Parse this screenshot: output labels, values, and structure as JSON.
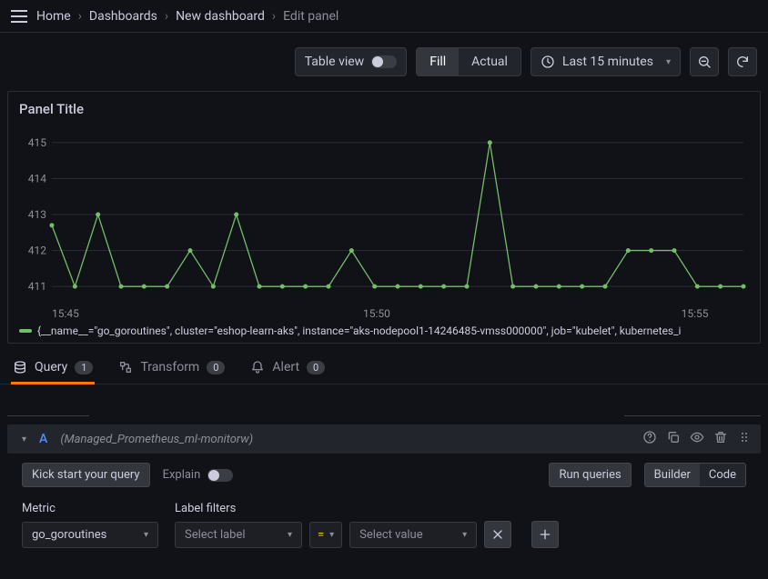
{
  "breadcrumbs": [
    "Home",
    "Dashboards",
    "New dashboard",
    "Edit panel"
  ],
  "toolbar": {
    "table_view": "Table view",
    "table_view_on": false,
    "fill": "Fill",
    "actual": "Actual",
    "time_range": "Last 15 minutes"
  },
  "panel": {
    "title": "Panel Title",
    "legend": "{__name__=\"go_goroutines\", cluster=\"eshop-learn-aks\", instance=\"aks-nodepool1-14246485-vmss000000\", job=\"kubelet\", kubernetes_i",
    "chart": {
      "type": "line",
      "line_color": "#73bf69",
      "marker_color": "#73bf69",
      "marker_radius": 2.5,
      "line_width": 1.3,
      "background": "#111217",
      "grid_color": "#2c2c34",
      "axis_text_color": "#8e8e99",
      "y_ticks": [
        411,
        412,
        413,
        414,
        415
      ],
      "ylim": [
        410.6,
        415.4
      ],
      "x_ticks": [
        {
          "pos": 0.0,
          "label": "15:45"
        },
        {
          "pos": 0.45,
          "label": "15:50"
        },
        {
          "pos": 0.91,
          "label": "15:55"
        }
      ],
      "xlim": [
        0,
        30
      ],
      "points": [
        [
          0,
          412.7
        ],
        [
          1,
          411
        ],
        [
          2,
          413
        ],
        [
          3,
          411
        ],
        [
          4,
          411
        ],
        [
          5,
          411
        ],
        [
          6,
          412
        ],
        [
          7,
          411
        ],
        [
          8,
          413
        ],
        [
          9,
          411
        ],
        [
          10,
          411
        ],
        [
          11,
          411
        ],
        [
          12,
          411
        ],
        [
          13,
          412
        ],
        [
          14,
          411
        ],
        [
          15,
          411
        ],
        [
          16,
          411
        ],
        [
          17,
          411
        ],
        [
          18,
          411
        ],
        [
          19,
          415
        ],
        [
          20,
          411
        ],
        [
          21,
          411
        ],
        [
          22,
          411
        ],
        [
          23,
          411
        ],
        [
          24,
          411
        ],
        [
          25,
          412
        ],
        [
          26,
          412
        ],
        [
          27,
          412
        ],
        [
          28,
          411
        ],
        [
          29,
          411
        ],
        [
          30,
          411
        ]
      ]
    }
  },
  "tabs": {
    "query": {
      "label": "Query",
      "count": "1"
    },
    "transform": {
      "label": "Transform",
      "count": "0"
    },
    "alert": {
      "label": "Alert",
      "count": "0"
    }
  },
  "query_row": {
    "ref_id": "A",
    "datasource": "(Managed_Prometheus_ml-monitorw)",
    "kick_start": "Kick start your query",
    "explain": "Explain",
    "run": "Run queries",
    "builder": "Builder",
    "code": "Code"
  },
  "fields": {
    "metric_label": "Metric",
    "label_filters_label": "Label filters",
    "metric_value": "go_goroutines",
    "select_label": "Select label",
    "op": "=",
    "select_value": "Select value"
  },
  "colors": {
    "bg": "#111217",
    "panel_border": "#2c2c34",
    "text": "#ccccdc",
    "muted": "#8e8e99",
    "accent_orange": "#ff780a",
    "accent_blue": "#4f8ef7",
    "green": "#73bf69"
  }
}
